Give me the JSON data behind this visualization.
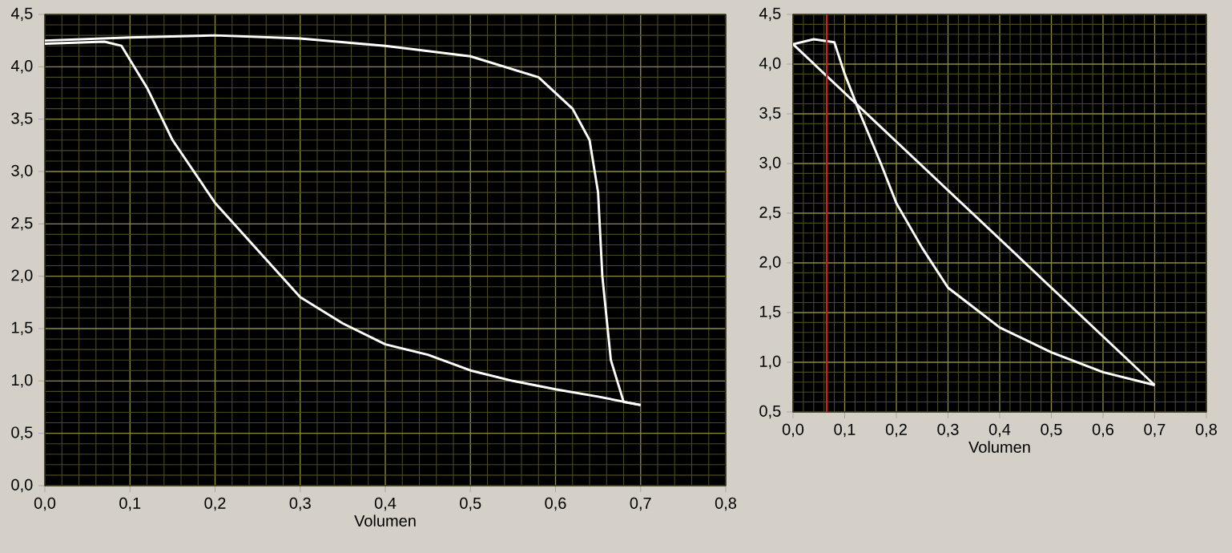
{
  "chart_data": [
    {
      "type": "line",
      "xlabel": "Volumen",
      "grid": true,
      "xlim": [
        0,
        0.8
      ],
      "ylim": [
        0,
        4.5
      ],
      "xticks": [
        {
          "value": 0,
          "label": "0,0"
        },
        {
          "value": 0.1,
          "label": "0,1"
        },
        {
          "value": 0.2,
          "label": "0,2"
        },
        {
          "value": 0.3,
          "label": "0,3"
        },
        {
          "value": 0.4,
          "label": "0,4"
        },
        {
          "value": 0.5,
          "label": "0,5"
        },
        {
          "value": 0.6,
          "label": "0,6"
        },
        {
          "value": 0.7,
          "label": "0,7"
        },
        {
          "value": 0.8,
          "label": "0,8"
        }
      ],
      "yticks": [
        {
          "value": 0,
          "label": "0,0"
        },
        {
          "value": 0.5,
          "label": "0,5"
        },
        {
          "value": 1,
          "label": "1,0"
        },
        {
          "value": 1.5,
          "label": "1,5"
        },
        {
          "value": 2,
          "label": "2,0"
        },
        {
          "value": 2.5,
          "label": "2,5"
        },
        {
          "value": 3,
          "label": "3,0"
        },
        {
          "value": 3.5,
          "label": "3,5"
        },
        {
          "value": 4,
          "label": "4,0"
        },
        {
          "value": 4.5,
          "label": "4,5"
        }
      ],
      "series": [
        {
          "color": "#ffffff",
          "x": [
            0,
            0.07,
            0.09,
            0.12,
            0.15,
            0.2,
            0.25,
            0.3,
            0.35,
            0.4,
            0.45,
            0.5,
            0.55,
            0.6,
            0.65,
            0.7
          ],
          "values": [
            4.22,
            4.24,
            4.2,
            3.8,
            3.3,
            2.7,
            2.25,
            1.8,
            1.55,
            1.35,
            1.25,
            1.1,
            1.0,
            0.92,
            0.85,
            0.77
          ]
        },
        {
          "color": "#ffffff",
          "x": [
            0,
            0.1,
            0.2,
            0.3,
            0.4,
            0.5,
            0.58,
            0.62,
            0.64,
            0.65,
            0.655,
            0.665,
            0.68,
            0.7
          ],
          "values": [
            4.25,
            4.28,
            4.3,
            4.27,
            4.2,
            4.1,
            3.9,
            3.6,
            3.3,
            2.8,
            2.0,
            1.2,
            0.8,
            0.77
          ]
        }
      ]
    },
    {
      "type": "line",
      "xlabel": "Volumen",
      "grid": true,
      "xlim": [
        0,
        0.8
      ],
      "ylim": [
        0.5,
        4.5
      ],
      "xticks": [
        {
          "value": 0,
          "label": "0,0"
        },
        {
          "value": 0.1,
          "label": "0,1"
        },
        {
          "value": 0.2,
          "label": "0,2"
        },
        {
          "value": 0.3,
          "label": "0,3"
        },
        {
          "value": 0.4,
          "label": "0,4"
        },
        {
          "value": 0.5,
          "label": "0,5"
        },
        {
          "value": 0.6,
          "label": "0,6"
        },
        {
          "value": 0.7,
          "label": "0,7"
        },
        {
          "value": 0.8,
          "label": "0,8"
        }
      ],
      "yticks": [
        {
          "value": 0.5,
          "label": "0,5"
        },
        {
          "value": 1,
          "label": "1,0"
        },
        {
          "value": 1.5,
          "label": "1,5"
        },
        {
          "value": 2,
          "label": "2,0"
        },
        {
          "value": 2.5,
          "label": "2,5"
        },
        {
          "value": 3,
          "label": "3,0"
        },
        {
          "value": 3.5,
          "label": "3,5"
        },
        {
          "value": 4,
          "label": "4,0"
        },
        {
          "value": 4.5,
          "label": "4,5"
        }
      ],
      "series": [
        {
          "color": "#ffffff",
          "x": [
            0,
            0.04,
            0.08,
            0.1,
            0.13,
            0.17,
            0.2,
            0.25,
            0.3,
            0.35,
            0.4,
            0.5,
            0.6,
            0.7
          ],
          "values": [
            4.2,
            4.25,
            4.22,
            3.9,
            3.5,
            3.0,
            2.6,
            2.15,
            1.75,
            1.55,
            1.35,
            1.1,
            0.9,
            0.77
          ]
        },
        {
          "color": "#ffffff",
          "x": [
            0,
            0.7
          ],
          "values": [
            4.2,
            0.77
          ]
        }
      ],
      "ref_lines": [
        {
          "axis": "x",
          "value": 0.065,
          "color": "#d02020"
        }
      ]
    }
  ]
}
